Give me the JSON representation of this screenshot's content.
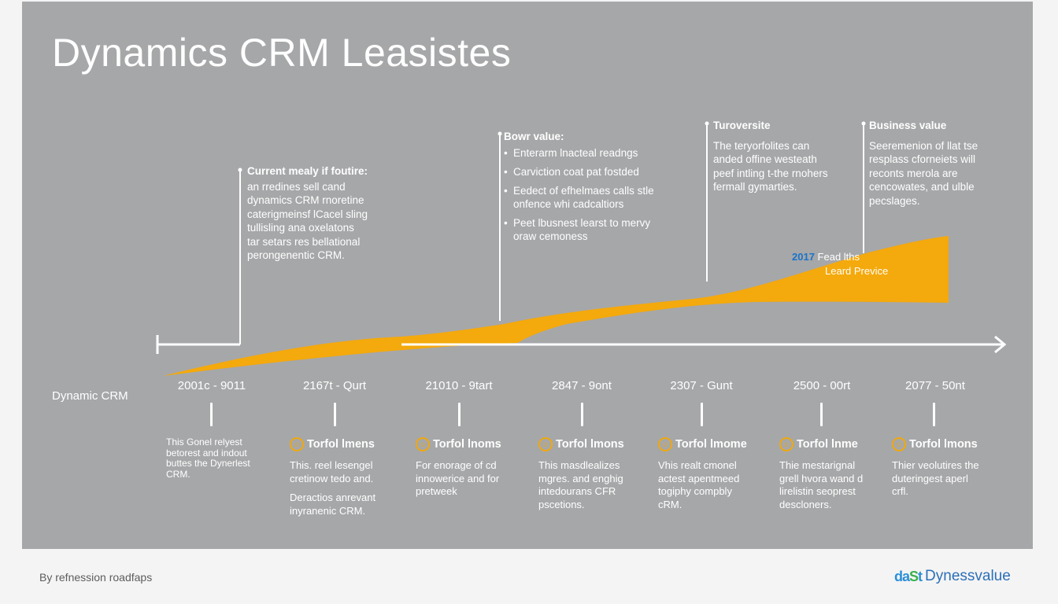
{
  "title": "Dynamics CRM Leasistes",
  "y_label": "Dynamic CRM",
  "callouts": [
    {
      "heading": "Current mealy if foutire:",
      "lines": [
        "an rredines sell cand",
        "dynamics CRM rnoretine",
        "caterigmeinsf lCacel sling",
        "tullisling ana oxelatons",
        "tar setars res bellational",
        "perongenentic CRM."
      ]
    },
    {
      "heading": "Bowr value:",
      "bullets": [
        "Enterarm lnacteal readngs",
        "Carviction coat pat fostded",
        "Eedect of efhelmaes calls stle onfence whi cadcaltiors",
        "Peet lbusnest learst to mervy oraw cemoness"
      ]
    },
    {
      "heading": "Turoversite",
      "lines": [
        "The teryorfolites can",
        "anded offine westeath",
        "peef intling t-the rnohers",
        "fermall gymarties."
      ]
    },
    {
      "heading": "Business value",
      "lines": [
        "Seeremenion of llat tse",
        "resplass cforneiets will",
        "reconts merola are",
        "cencowates, and ulble",
        "pecslages."
      ]
    }
  ],
  "chart_label": {
    "year": "2017",
    "line1": "Fead lths",
    "line2": "Leard Previce"
  },
  "milestones": [
    {
      "date": "2001c - 9011",
      "heading": "",
      "lines": [
        "This Gonel relyest",
        "betorest and indout",
        "buttes the Dynerlest",
        "CRM."
      ]
    },
    {
      "date": "2167t - Qurt",
      "heading": "Torfol lmens",
      "lines": [
        "This. reel lesengel",
        "cretinow tedo and."
      ],
      "extra": [
        "Deractios anrevant",
        "inyranenic CRM."
      ]
    },
    {
      "date": "21010 - 9tart",
      "heading": "Torfol lnoms",
      "lines": [
        "For enorage of cd",
        "innowerice and for",
        "pretweek"
      ]
    },
    {
      "date": "2847 - 9ont",
      "heading": "Torfol lmons",
      "lines": [
        "This masdlealizes",
        "mgres. and enghig",
        "intedourans CFR",
        "pscetions."
      ]
    },
    {
      "date": "2307 - Gunt",
      "heading": "Torfol lmome",
      "lines": [
        "Vhis realt cmonel",
        "actest apentmeed",
        "togiphy compbly",
        "cRM."
      ]
    },
    {
      "date": "2500 - 00rt",
      "heading": "Torfol lnme",
      "lines": [
        "Thie mestarignal",
        "grell hvora wand d",
        "lirelistin seoprest",
        "descloners."
      ]
    },
    {
      "date": "2077 - 50nt",
      "heading": "Torfol lmons",
      "lines": [
        "Thier veolutires the",
        "duteringest aperl",
        "crfl."
      ]
    }
  ],
  "footer": {
    "left": "By refnession roadfaps",
    "brand_mark_a": "da",
    "brand_mark_b": "S",
    "brand_mark_c": "t",
    "brand_name": "Dynessvalue"
  },
  "colors": {
    "panel": "#a6a7a9",
    "accent": "#f4a90c",
    "brand": "#2b6fb8"
  }
}
